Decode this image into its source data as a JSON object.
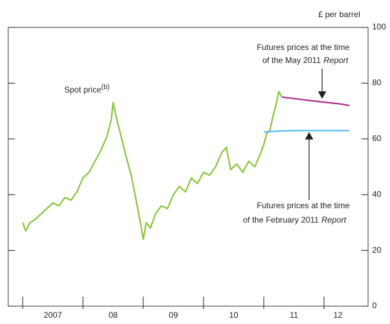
{
  "chart_data": {
    "type": "line",
    "ylabel": "£ per barrel",
    "ylim": [
      0,
      100
    ],
    "yticks": [
      0,
      20,
      40,
      60,
      80,
      100
    ],
    "xlim": [
      2006.76,
      2012.73
    ],
    "xtick_marks": [
      2007,
      2008,
      2009,
      2010,
      2011,
      2012
    ],
    "xticks": [
      {
        "value": 2007.5,
        "label": "2007"
      },
      {
        "value": 2008.5,
        "label": "08"
      },
      {
        "value": 2009.5,
        "label": "09"
      },
      {
        "value": 2010.5,
        "label": "10"
      },
      {
        "value": 2011.5,
        "label": "11"
      },
      {
        "value": 2012.23,
        "label": "12"
      }
    ],
    "series": [
      {
        "name": "Spot price",
        "note": "(b)",
        "color": "#8dc63f",
        "x": [
          2007.0,
          2007.05,
          2007.12,
          2007.2,
          2007.3,
          2007.4,
          2007.5,
          2007.6,
          2007.7,
          2007.8,
          2007.9,
          2008.0,
          2008.1,
          2008.2,
          2008.3,
          2008.4,
          2008.47,
          2008.5,
          2008.55,
          2008.62,
          2008.7,
          2008.8,
          2008.9,
          2008.97,
          2009.0,
          2009.05,
          2009.12,
          2009.2,
          2009.3,
          2009.4,
          2009.5,
          2009.6,
          2009.7,
          2009.8,
          2009.9,
          2010.0,
          2010.1,
          2010.2,
          2010.3,
          2010.38,
          2010.45,
          2010.55,
          2010.65,
          2010.75,
          2010.85,
          2010.95,
          2011.0,
          2011.05,
          2011.1,
          2011.15,
          2011.2,
          2011.25,
          2011.3
        ],
        "values": [
          30,
          27,
          30,
          31,
          33,
          35,
          37,
          36,
          39,
          38,
          41,
          46,
          48,
          52,
          56,
          61,
          67,
          73,
          68,
          62,
          55,
          47,
          36,
          28,
          24,
          30,
          28,
          33,
          36,
          35,
          40,
          43,
          41,
          46,
          44,
          48,
          47,
          50,
          55,
          57,
          49,
          51,
          48,
          52,
          50,
          55,
          58,
          62,
          63,
          68,
          72,
          77,
          75
        ]
      },
      {
        "name": "Futures prices at the time of the May 2011 Report",
        "color": "#b0338f",
        "x": [
          2011.3,
          2011.5,
          2011.75,
          2012.0,
          2012.25,
          2012.42
        ],
        "values": [
          75,
          74.5,
          73.8,
          73.2,
          72.6,
          72
        ]
      },
      {
        "name": "Futures prices at the time of the February 2011 Report",
        "color": "#5bc0eb",
        "x": [
          2011.0,
          2011.25,
          2011.5,
          2011.75,
          2012.0,
          2012.25,
          2012.42
        ],
        "values": [
          62.5,
          62.8,
          63,
          63,
          63,
          63,
          63
        ]
      }
    ],
    "annotations": [
      {
        "text": "Spot price",
        "superscript": "(b)"
      },
      {
        "lines": [
          "Futures prices at the time",
          "of the May 2011"
        ],
        "italic": "Report"
      },
      {
        "lines": [
          "Futures prices at the time",
          "of the February 2011"
        ],
        "italic": "Report"
      }
    ]
  }
}
